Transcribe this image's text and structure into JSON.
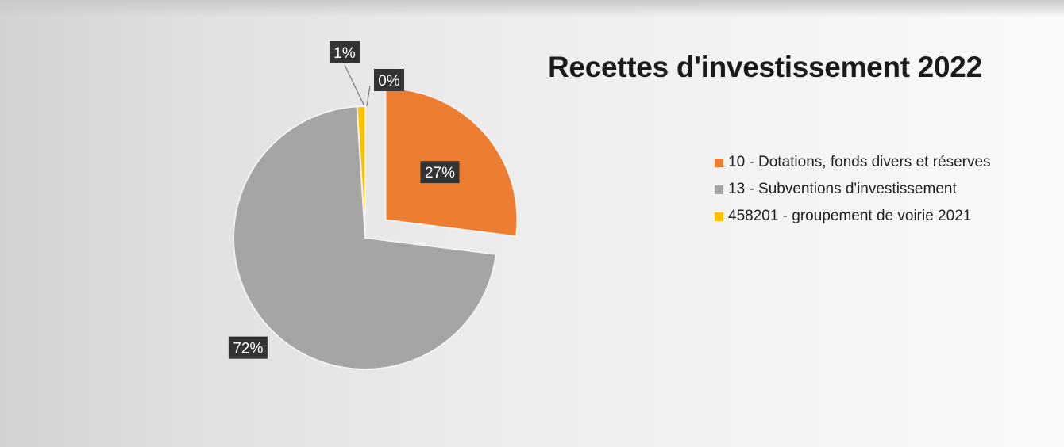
{
  "chart_data": {
    "type": "pie",
    "title": "Recettes d'investissement 2022",
    "legend_position": "right",
    "categories": [
      "10 - Dotations, fonds divers et réserves",
      "13 - Subventions d'investissement",
      "458201 - groupement de voirie 2021",
      ""
    ],
    "values": [
      27,
      72,
      1,
      0
    ],
    "data_labels": [
      "27%",
      "72%",
      "1%",
      "0%"
    ],
    "colors": [
      "#ed7d31",
      "#a5a5a5",
      "#ffc000",
      "#5b9bd5"
    ],
    "label_color": "#ffffff",
    "label_background": "#333333",
    "exploded": true
  }
}
